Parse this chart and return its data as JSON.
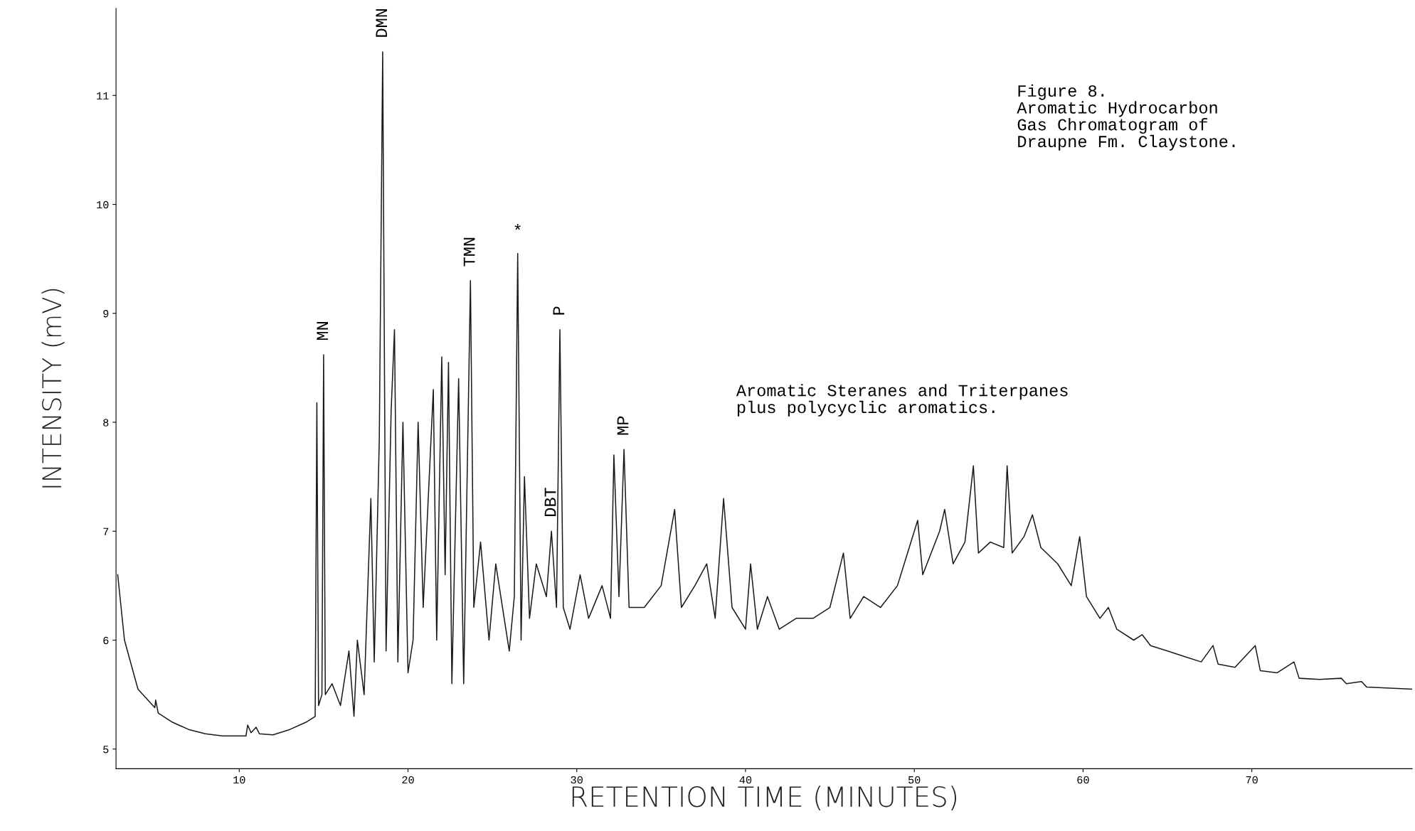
{
  "chart_data": {
    "type": "line",
    "xlabel": "RETENTION TIME (MINUTES)",
    "ylabel": "INTENSITY (mV)",
    "x": [
      2.8,
      3.2,
      4,
      5,
      5.05,
      5.2,
      6,
      7,
      8,
      9,
      10,
      10.4,
      10.5,
      10.7,
      11,
      11.2,
      12,
      13,
      14,
      14.5,
      14.6,
      14.7,
      14.9,
      15.0,
      15.1,
      15.5,
      16,
      16.5,
      16.8,
      17,
      17.4,
      17.8,
      18.0,
      18.3,
      18.5,
      18.7,
      19.0,
      19.2,
      19.4,
      19.7,
      20,
      20.3,
      20.6,
      20.9,
      21.5,
      21.7,
      22.0,
      22.2,
      22.4,
      22.6,
      23.0,
      23.3,
      23.7,
      23.9,
      24.3,
      24.8,
      25.2,
      25.6,
      26.0,
      26.3,
      26.5,
      26.7,
      26.9,
      27.2,
      27.6,
      28.2,
      28.5,
      28.8,
      29.0,
      29.2,
      29.6,
      30.2,
      30.7,
      31.5,
      32.0,
      32.2,
      32.5,
      32.8,
      33.1,
      34,
      35,
      35.8,
      36.2,
      37,
      37.7,
      38.2,
      38.7,
      39.2,
      40.0,
      40.3,
      40.7,
      41.3,
      42,
      43,
      44,
      45,
      45.8,
      46.2,
      47,
      48,
      49,
      50.2,
      50.5,
      51.5,
      51.8,
      52.3,
      53,
      53.5,
      53.8,
      54.5,
      55.3,
      55.5,
      55.8,
      56.5,
      57.0,
      57.5,
      58.5,
      59.3,
      59.8,
      60.2,
      61,
      61.5,
      62,
      63,
      63.5,
      64,
      65,
      66,
      67,
      67.7,
      68,
      69,
      70.2,
      70.5,
      71.5,
      72.5,
      72.8,
      74,
      75.3,
      75.6,
      76.5,
      76.8,
      79.5
    ],
    "series": [
      {
        "color": "#1a1a1a",
        "values": [
          6.6,
          6.0,
          5.55,
          5.38,
          5.45,
          5.33,
          5.25,
          5.18,
          5.14,
          5.12,
          5.12,
          5.12,
          5.22,
          5.15,
          5.2,
          5.14,
          5.13,
          5.18,
          5.25,
          5.3,
          8.18,
          5.4,
          5.5,
          8.62,
          5.5,
          5.6,
          5.4,
          5.9,
          5.3,
          6.0,
          5.5,
          7.3,
          5.8,
          7.85,
          11.4,
          5.9,
          8.1,
          8.85,
          5.8,
          8.0,
          5.7,
          6.0,
          8.0,
          6.3,
          8.3,
          6.0,
          8.6,
          6.6,
          8.55,
          5.6,
          8.4,
          5.6,
          9.3,
          6.3,
          6.9,
          6.0,
          6.7,
          6.3,
          5.9,
          6.4,
          9.55,
          6.0,
          7.5,
          6.2,
          6.7,
          6.4,
          7.0,
          6.3,
          8.85,
          6.3,
          6.1,
          6.6,
          6.2,
          6.5,
          6.2,
          7.7,
          6.4,
          7.75,
          6.3,
          6.3,
          6.5,
          7.2,
          6.3,
          6.5,
          6.7,
          6.2,
          7.3,
          6.3,
          6.1,
          6.7,
          6.1,
          6.4,
          6.1,
          6.2,
          6.2,
          6.3,
          6.8,
          6.2,
          6.4,
          6.3,
          6.5,
          7.1,
          6.6,
          7.0,
          7.2,
          6.7,
          6.9,
          7.6,
          6.8,
          6.9,
          6.85,
          7.6,
          6.8,
          6.95,
          7.15,
          6.85,
          6.7,
          6.5,
          6.95,
          6.4,
          6.2,
          6.3,
          6.1,
          6.0,
          6.05,
          5.95,
          5.9,
          5.85,
          5.8,
          5.95,
          5.78,
          5.75,
          5.95,
          5.72,
          5.7,
          5.8,
          5.65,
          5.64,
          5.65,
          5.6,
          5.62,
          5.57,
          5.55
        ]
      }
    ],
    "xlim": [
      2.7,
      79.5
    ],
    "ylim": [
      4.82,
      11.8
    ],
    "xticks": [
      10,
      20,
      30,
      40,
      50,
      60,
      70
    ],
    "yticks": [
      5,
      6,
      7,
      8,
      9,
      10,
      11
    ],
    "grid": false,
    "legend": false,
    "marker": "none",
    "line_style": "solid",
    "annotations": [
      {
        "text": "MN",
        "x": 15.0,
        "y": 8.62
      },
      {
        "text": "DMN",
        "x": 18.5,
        "y": 11.4
      },
      {
        "text": "TMN",
        "x": 23.7,
        "y": 9.3
      },
      {
        "text": "*",
        "x": 26.5,
        "y": 9.55
      },
      {
        "text": "P",
        "x": 29.0,
        "y": 8.85
      },
      {
        "text": "DBT",
        "x": 28.5,
        "y": 7.0
      },
      {
        "text": "MP",
        "x": 32.8,
        "y": 7.75
      },
      {
        "text": "Aromatic Steranes and Triterpanes\nplus polycyclic aromatics.",
        "x": 53.5,
        "y": 7.6
      },
      "Figure 8.\nAromatic Hydrocarbon\nGas Chromatogram of\nDraupne Fm. Claystone."
    ]
  }
}
